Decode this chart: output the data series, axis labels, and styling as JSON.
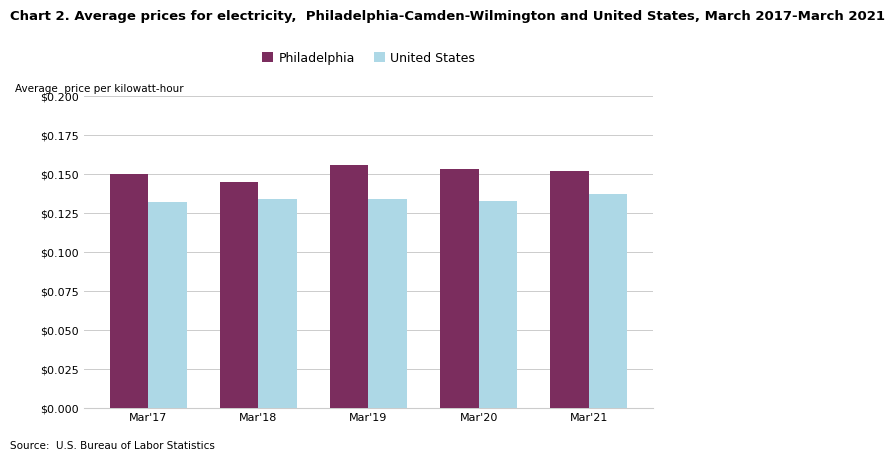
{
  "title": "Chart 2. Average prices for electricity,  Philadelphia-Camden-Wilmington and United States, March 2017-March 2021",
  "ylabel": "Average  price per kilowatt-hour",
  "source": "Source:  U.S. Bureau of Labor Statistics",
  "categories": [
    "Mar'17",
    "Mar'18",
    "Mar'19",
    "Mar'20",
    "Mar'21"
  ],
  "philadelphia": [
    0.15,
    0.145,
    0.156,
    0.153,
    0.152
  ],
  "us": [
    0.132,
    0.134,
    0.134,
    0.133,
    0.137
  ],
  "philly_color": "#7B2D5E",
  "us_color": "#ADD8E6",
  "ylim": [
    0.0,
    0.2
  ],
  "yticks": [
    0.0,
    0.025,
    0.05,
    0.075,
    0.1,
    0.125,
    0.15,
    0.175,
    0.2
  ],
  "legend_labels": [
    "Philadelphia",
    "United States"
  ],
  "bar_width": 0.35,
  "title_fontsize": 9.5,
  "axis_label_fontsize": 7.5,
  "tick_fontsize": 8,
  "legend_fontsize": 9,
  "source_fontsize": 7.5,
  "background_color": "#ffffff",
  "grid_color": "#cccccc"
}
